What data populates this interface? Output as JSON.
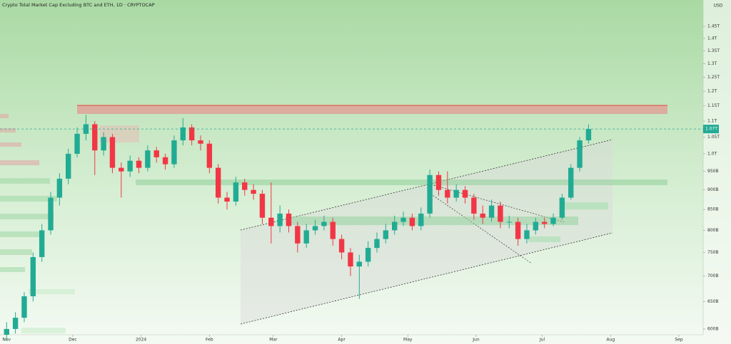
{
  "chart_data": {
    "type": "candlestick",
    "title": "Crypto Total Market Cap Excluding BTC and ETH, 1D · CRYPTOCAP",
    "currency": "USD",
    "last_price_label": "1.07T",
    "log_scale": true,
    "grid": false,
    "up_color": "#22ab94",
    "down_color": "#f23645",
    "xlim": [
      -3,
      316
    ],
    "xticks": [
      {
        "value": 0,
        "label": "Nov"
      },
      {
        "value": 30,
        "label": "Dec"
      },
      {
        "value": 61,
        "label": "2024"
      },
      {
        "value": 92,
        "label": "Feb"
      },
      {
        "value": 121,
        "label": "Mar"
      },
      {
        "value": 152,
        "label": "Apr"
      },
      {
        "value": 182,
        "label": "May"
      },
      {
        "value": 213,
        "label": "Jun"
      },
      {
        "value": 243,
        "label": "Jul"
      },
      {
        "value": 274,
        "label": "Aug"
      },
      {
        "value": 305,
        "label": "Sep"
      }
    ],
    "ylim": [
      590,
      1566
    ],
    "yticks": [
      {
        "value": 1450,
        "label": "1.45T"
      },
      {
        "value": 1400,
        "label": "1.4T"
      },
      {
        "value": 1350,
        "label": "1.35T"
      },
      {
        "value": 1300,
        "label": "1.3T"
      },
      {
        "value": 1250,
        "label": "1.25T"
      },
      {
        "value": 1200,
        "label": "1.2T"
      },
      {
        "value": 1150,
        "label": "1.15T"
      },
      {
        "value": 1100,
        "label": "1.1T"
      },
      {
        "value": 1050,
        "label": "1.05T"
      },
      {
        "value": 1000,
        "label": "1.0T"
      },
      {
        "value": 950,
        "label": "950B"
      },
      {
        "value": 900,
        "label": "900B"
      },
      {
        "value": 850,
        "label": "850B"
      },
      {
        "value": 800,
        "label": "800B"
      },
      {
        "value": 750,
        "label": "750B"
      },
      {
        "value": 700,
        "label": "700B"
      },
      {
        "value": 650,
        "label": "650B"
      },
      {
        "value": 600,
        "label": "600B"
      }
    ],
    "x": [
      0,
      4,
      8,
      12,
      16,
      20,
      24,
      28,
      32,
      36,
      40,
      44,
      48,
      52,
      56,
      60,
      64,
      68,
      72,
      76,
      80,
      84,
      88,
      92,
      96,
      100,
      104,
      108,
      112,
      116,
      120,
      124,
      128,
      132,
      136,
      140,
      144,
      148,
      152,
      156,
      160,
      164,
      168,
      172,
      176,
      180,
      184,
      188,
      192,
      196,
      200,
      204,
      208,
      212,
      216,
      220,
      224,
      228,
      232,
      236,
      240,
      244,
      248,
      252,
      256,
      260,
      264
    ],
    "open": [
      590,
      600,
      620,
      660,
      740,
      800,
      880,
      930,
      1000,
      1060,
      1090,
      1010,
      1050,
      960,
      950,
      980,
      960,
      1010,
      990,
      970,
      1040,
      1080,
      1040,
      1030,
      960,
      880,
      870,
      920,
      900,
      890,
      830,
      810,
      840,
      810,
      770,
      800,
      810,
      820,
      780,
      750,
      720,
      730,
      760,
      780,
      800,
      820,
      830,
      810,
      840,
      940,
      900,
      880,
      900,
      880,
      840,
      830,
      860,
      820,
      820,
      780,
      800,
      820,
      815,
      830,
      880,
      960,
      1040
    ],
    "high": [
      612,
      630,
      668,
      750,
      815,
      895,
      945,
      1015,
      1080,
      1120,
      1100,
      1065,
      1060,
      975,
      995,
      990,
      1025,
      1020,
      1000,
      1055,
      1110,
      1090,
      1055,
      1040,
      970,
      895,
      935,
      930,
      915,
      900,
      920,
      860,
      850,
      820,
      815,
      825,
      835,
      830,
      790,
      760,
      745,
      775,
      795,
      815,
      835,
      845,
      840,
      855,
      955,
      950,
      950,
      915,
      910,
      890,
      860,
      875,
      870,
      835,
      830,
      815,
      830,
      830,
      840,
      890,
      970,
      1050,
      1090
    ],
    "low": [
      580,
      592,
      612,
      650,
      730,
      790,
      860,
      915,
      990,
      1040,
      940,
      995,
      945,
      880,
      935,
      945,
      950,
      975,
      955,
      960,
      1025,
      1025,
      1010,
      945,
      865,
      850,
      860,
      885,
      875,
      815,
      770,
      795,
      795,
      750,
      760,
      790,
      800,
      765,
      735,
      700,
      655,
      720,
      750,
      770,
      790,
      810,
      800,
      800,
      830,
      885,
      865,
      870,
      865,
      825,
      815,
      820,
      805,
      805,
      765,
      770,
      790,
      805,
      810,
      825,
      875,
      950,
      1030
    ],
    "close": [
      600,
      620,
      660,
      740,
      800,
      880,
      930,
      1000,
      1060,
      1090,
      1010,
      1050,
      960,
      950,
      980,
      960,
      1010,
      990,
      970,
      1040,
      1080,
      1040,
      1030,
      960,
      880,
      870,
      920,
      900,
      890,
      830,
      810,
      840,
      810,
      770,
      800,
      810,
      820,
      780,
      750,
      720,
      730,
      760,
      780,
      800,
      820,
      830,
      810,
      840,
      940,
      900,
      880,
      900,
      880,
      840,
      830,
      860,
      820,
      820,
      780,
      800,
      820,
      815,
      830,
      880,
      960,
      1040,
      1075
    ]
  }
}
